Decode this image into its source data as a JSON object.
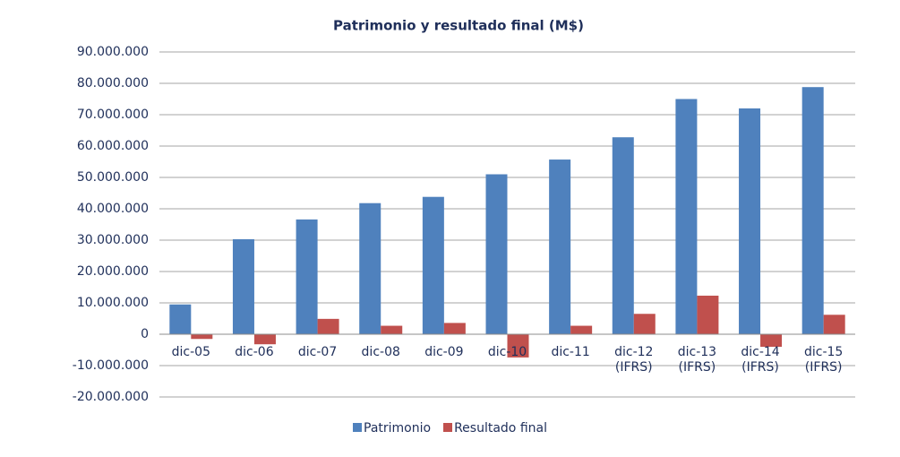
{
  "chart_data": {
    "type": "bar",
    "title": "Patrimonio y resultado final (M$)",
    "categories": [
      "dic-05",
      "dic-06",
      "dic-07",
      "dic-08",
      "dic-09",
      "dic-10",
      "dic-11",
      "dic-12\n(IFRS)",
      "dic-13\n(IFRS)",
      "dic-14\n(IFRS)",
      "dic-15\n(IFRS)"
    ],
    "series": [
      {
        "name": "Patrimonio",
        "color": "#4f81bd",
        "values": [
          9500000,
          30300000,
          36600000,
          41800000,
          43800000,
          51000000,
          55700000,
          62800000,
          75000000,
          72000000,
          78800000
        ]
      },
      {
        "name": "Resultado final",
        "color": "#c0504d",
        "values": [
          -1500000,
          -3200000,
          4900000,
          2700000,
          3600000,
          -7400000,
          2700000,
          6500000,
          12300000,
          -4000000,
          6200000
        ]
      }
    ],
    "ylim": [
      -20000000,
      90000000
    ],
    "yticks": [
      {
        "value": -20000000,
        "label": "-20.000.000"
      },
      {
        "value": -10000000,
        "label": "-10.000.000"
      },
      0,
      {
        "value": 10000000,
        "label": "10.000.000"
      },
      {
        "value": 20000000,
        "label": "20.000.000"
      },
      {
        "value": 30000000,
        "label": "30.000.000"
      },
      {
        "value": 40000000,
        "label": "40.000.000"
      },
      {
        "value": 50000000,
        "label": "50.000.000"
      },
      {
        "value": 60000000,
        "label": "60.000.000"
      },
      {
        "value": 70000000,
        "label": "70.000.000"
      },
      {
        "value": 80000000,
        "label": "80.000.000"
      },
      {
        "value": 90000000,
        "label": "90.000.000"
      }
    ],
    "grid": true,
    "legend": "bottom"
  }
}
